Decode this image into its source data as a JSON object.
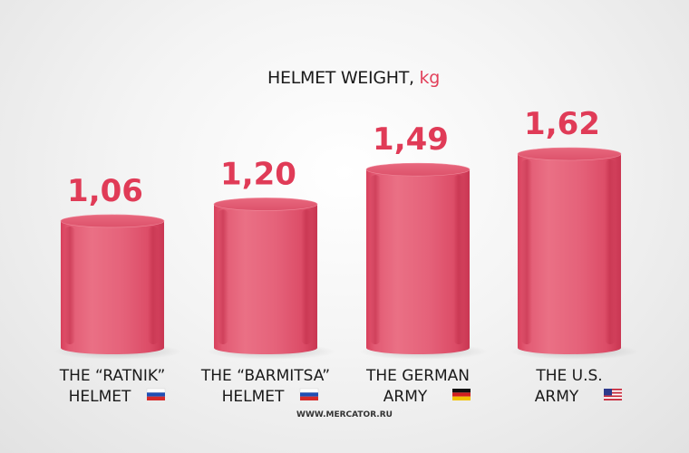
{
  "chart_data": {
    "type": "bar",
    "title": "HELMET WEIGHT, ",
    "unit": "kg",
    "categories": [
      [
        "THE “RATNIK”",
        "HELMET"
      ],
      [
        "THE “BARMITSA”",
        "HELMET"
      ],
      [
        "THE GERMAN",
        "ARMY"
      ],
      [
        "THE U.S.",
        "ARMY"
      ]
    ],
    "values": [
      1.06,
      1.2,
      1.49,
      1.62
    ],
    "value_labels": [
      "1,06",
      "1,20",
      "1,49",
      "1,62"
    ],
    "flags": [
      "russia-flag",
      "russia-flag",
      "germany-flag",
      "usa-flag"
    ],
    "ylim": [
      0,
      1.62
    ],
    "bar_color": "#e0506a",
    "value_color": "#e03b57",
    "grid": false,
    "source": "WWW.MERCATOR.RU"
  }
}
